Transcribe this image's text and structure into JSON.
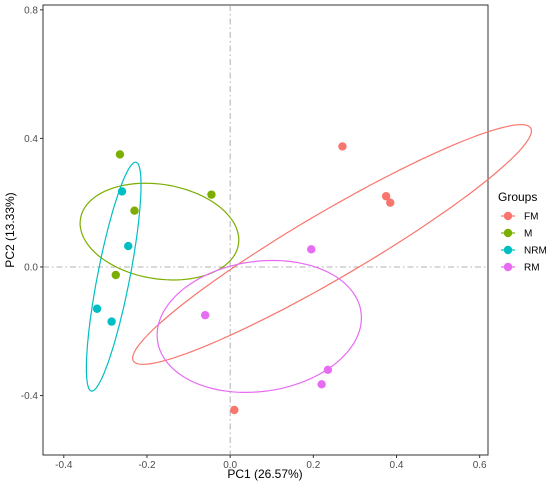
{
  "chart_data": {
    "type": "scatter",
    "xlabel": "PC1 (26.57%)",
    "ylabel": "PC2 (13.33%)",
    "xlim": [
      -0.45,
      0.62
    ],
    "ylim": [
      -0.585,
      0.815
    ],
    "x_ticks": [
      -0.4,
      -0.2,
      0.0,
      0.2,
      0.4,
      0.6
    ],
    "x_tick_labels": [
      "-0.4",
      "-0.2",
      "0.0",
      "0.2",
      "0.4",
      "0.6"
    ],
    "y_ticks": [
      -0.4,
      0.0,
      0.4,
      0.8
    ],
    "y_tick_labels": [
      "-0.4",
      "0.0",
      "0.4",
      "0.8"
    ],
    "grid": false,
    "reference_lines": {
      "x": 0,
      "y": 0
    },
    "legend": {
      "title": "Groups",
      "position": "right"
    },
    "series": [
      {
        "name": "FM",
        "color": "#F8766D",
        "points": [
          [
            0.27,
            0.375
          ],
          [
            0.375,
            0.22
          ],
          [
            0.385,
            0.2
          ],
          [
            0.01,
            -0.445
          ]
        ],
        "ellipse": {
          "cx": 0.245,
          "cy": 0.07,
          "rx": 0.6,
          "ry": 0.095,
          "angle_deg": 37.5
        }
      },
      {
        "name": "M",
        "color": "#7CAE00",
        "points": [
          [
            -0.265,
            0.35
          ],
          [
            -0.23,
            0.175
          ],
          [
            -0.045,
            0.225
          ],
          [
            -0.275,
            -0.025
          ]
        ],
        "ellipse": {
          "cx": -0.17,
          "cy": 0.11,
          "rx": 0.195,
          "ry": 0.145,
          "angle_deg": -18
        }
      },
      {
        "name": "NRM",
        "color": "#00BFC4",
        "points": [
          [
            -0.26,
            0.235
          ],
          [
            -0.245,
            0.065
          ],
          [
            -0.32,
            -0.13
          ],
          [
            -0.285,
            -0.17
          ]
        ],
        "ellipse": {
          "cx": -0.28,
          "cy": -0.03,
          "rx": 0.36,
          "ry": 0.039,
          "angle_deg": 81.5
        }
      },
      {
        "name": "RM",
        "color": "#E76BF3",
        "points": [
          [
            0.195,
            0.055
          ],
          [
            -0.06,
            -0.15
          ],
          [
            0.235,
            -0.32
          ],
          [
            0.22,
            -0.365
          ]
        ],
        "ellipse": {
          "cx": 0.07,
          "cy": -0.185,
          "rx": 0.25,
          "ry": 0.2,
          "angle_deg": 18
        }
      }
    ]
  }
}
